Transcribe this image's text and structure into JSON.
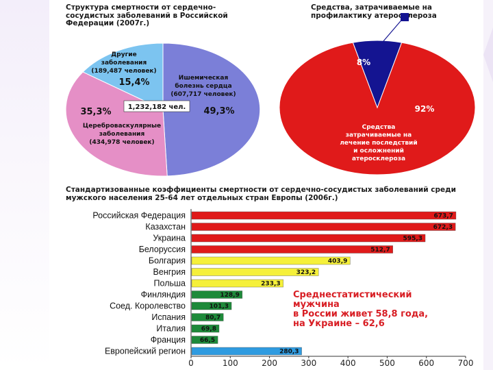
{
  "chart_data": [
    {
      "type": "pie",
      "title": "Структура смертности от сердечно-сосудистых заболеваний в Российской Федерации (2007г.)",
      "center_label": "1,232,182 чел.",
      "slices": [
        {
          "name": "Ишемическая болезнь сердца",
          "count": "(607,717 человек)",
          "percent": "49,3%",
          "value": 49.3,
          "color": "#7b7fd8"
        },
        {
          "name": "Цереброваскулярные заболевания",
          "count": "(434,978 человек)",
          "percent": "35,3%",
          "value": 35.3,
          "color": "#e58fc6"
        },
        {
          "name": "Другие заболевания",
          "count": "(189,487 человек)",
          "percent": "15,4%",
          "value": 15.4,
          "color": "#7cc4f0"
        }
      ]
    },
    {
      "type": "pie",
      "title": "Средства, затрачиваемые на профилактику атеросклероза",
      "slices": [
        {
          "name": "Средства, затрачиваемые на лечение последствий и осложнений атеросклероза",
          "percent": "92%",
          "value": 92,
          "color": "#e01a1a"
        },
        {
          "name": "Средства, затрачиваемые на профилактику атеросклероза",
          "percent": "8%",
          "value": 8,
          "color": "#141491"
        }
      ]
    },
    {
      "type": "bar",
      "orientation": "horizontal",
      "title": "Стандартизованные коэффициенты смертности от сердечно-сосудистых заболеваний среди мужского населения 25-64 лет отдельных стран Европы (2006г.)",
      "categories": [
        "Российская Федерация",
        "Казахстан",
        "Украина",
        "Белоруссия",
        "Болгария",
        "Венгрия",
        "Польша",
        "Финляндия",
        "Соед. Королевство",
        "Испания",
        "Италия",
        "Франция",
        "Европейский регион"
      ],
      "values": [
        673.7,
        672.3,
        595.3,
        512.7,
        403.9,
        323.2,
        233.3,
        128.9,
        101.3,
        80.7,
        69.8,
        66.5,
        280.3
      ],
      "value_labels": [
        "673,7",
        "672,3",
        "595,3",
        "512,7",
        "403,9",
        "323,2",
        "233,3",
        "128,9",
        "101,3",
        "80,7",
        "69,8",
        "66,5",
        "280,3"
      ],
      "colors": [
        "#e01a1a",
        "#e01a1a",
        "#e01a1a",
        "#e01a1a",
        "#f5f03a",
        "#f5f03a",
        "#f5f03a",
        "#1e8a3a",
        "#1e8a3a",
        "#1e8a3a",
        "#1e8a3a",
        "#1e8a3a",
        "#2f9be0"
      ],
      "xticks": [
        0,
        100,
        200,
        300,
        400,
        500,
        600,
        700
      ],
      "xlim": [
        0,
        700
      ],
      "grid": false
    }
  ],
  "callout": {
    "lines": [
      "Среднестатистический",
      "мужчина",
      "в России живет 58,8 года,",
      "на Украине – 62,6"
    ]
  }
}
